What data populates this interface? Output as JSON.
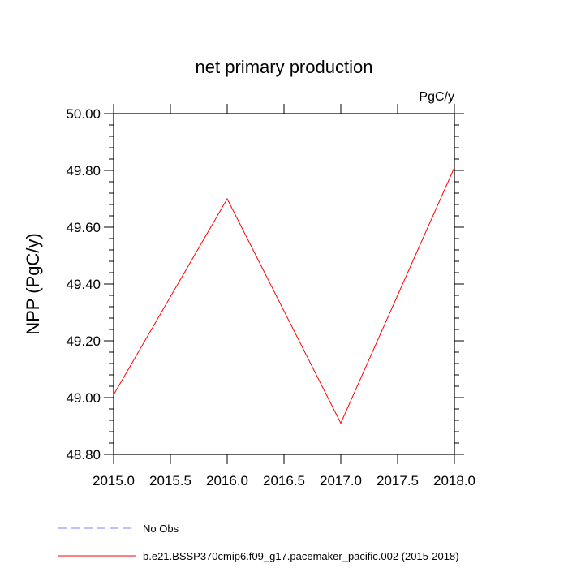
{
  "chart_data": {
    "type": "line",
    "title": "net primary production",
    "units_label": "PgC/y",
    "ylabel": "NPP  (PgC/y)",
    "xlabel": "",
    "xlim": [
      2015.0,
      2018.0
    ],
    "ylim": [
      48.8,
      50.0
    ],
    "x_ticks": [
      "2015.0",
      "2015.5",
      "2016.0",
      "2016.5",
      "2017.0",
      "2017.5",
      "2018.0"
    ],
    "y_ticks": [
      "48.80",
      "49.00",
      "49.20",
      "49.40",
      "49.60",
      "49.80",
      "50.00"
    ],
    "grid": false,
    "legend_position": "bottom",
    "series": [
      {
        "name": "No Obs",
        "color": "#8080ff",
        "dash": "dashed",
        "x": [],
        "y": []
      },
      {
        "name": "b.e21.BSSP370cmip6.f09_g17.pacemaker_pacific.002 (2015-2018)",
        "color": "#ff0000",
        "dash": "solid",
        "x": [
          2015,
          2016,
          2017,
          2018
        ],
        "y": [
          49.01,
          49.7,
          48.91,
          49.81
        ]
      }
    ]
  }
}
